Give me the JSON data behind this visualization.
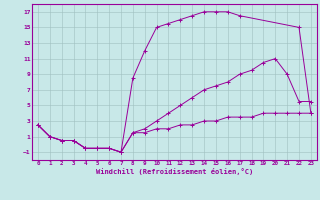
{
  "xlabel": "Windchill (Refroidissement éolien,°C)",
  "bg_color": "#c8e8e8",
  "line_color": "#990099",
  "xlim": [
    -0.5,
    23.5
  ],
  "ylim": [
    -2,
    18
  ],
  "xticks": [
    0,
    1,
    2,
    3,
    4,
    5,
    6,
    7,
    8,
    9,
    10,
    11,
    12,
    13,
    14,
    15,
    16,
    17,
    18,
    19,
    20,
    21,
    22,
    23
  ],
  "yticks": [
    -1,
    1,
    3,
    5,
    7,
    9,
    11,
    13,
    15,
    17
  ],
  "curve1_x": [
    0,
    1,
    2,
    3,
    4,
    5,
    6,
    7,
    8,
    9,
    10,
    11,
    12,
    13,
    14,
    15,
    16,
    17,
    22,
    23
  ],
  "curve1_y": [
    2.5,
    1.0,
    0.5,
    0.5,
    -0.5,
    -0.5,
    -0.5,
    -1.0,
    8.5,
    12.0,
    15.0,
    15.5,
    16.0,
    16.5,
    17.0,
    17.0,
    17.0,
    16.5,
    15.0,
    4.0
  ],
  "curve2_x": [
    0,
    1,
    2,
    3,
    4,
    5,
    6,
    7,
    8,
    9,
    10,
    11,
    12,
    13,
    14,
    15,
    16,
    17,
    18,
    19,
    20,
    21,
    22,
    23
  ],
  "curve2_y": [
    2.5,
    1.0,
    0.5,
    0.5,
    -0.5,
    -0.5,
    -0.5,
    -1.0,
    1.5,
    2.0,
    3.0,
    4.0,
    5.0,
    6.0,
    7.0,
    7.5,
    8.0,
    9.0,
    9.5,
    10.5,
    11.0,
    9.0,
    5.5,
    5.5
  ],
  "curve3_x": [
    0,
    1,
    2,
    3,
    4,
    5,
    6,
    7,
    8,
    9,
    10,
    11,
    12,
    13,
    14,
    15,
    16,
    17,
    18,
    19,
    20,
    21,
    22,
    23
  ],
  "curve3_y": [
    2.5,
    1.0,
    0.5,
    0.5,
    -0.5,
    -0.5,
    -0.5,
    -1.0,
    1.5,
    1.5,
    2.0,
    2.0,
    2.5,
    2.5,
    3.0,
    3.0,
    3.5,
    3.5,
    3.5,
    4.0,
    4.0,
    4.0,
    4.0,
    4.0
  ]
}
